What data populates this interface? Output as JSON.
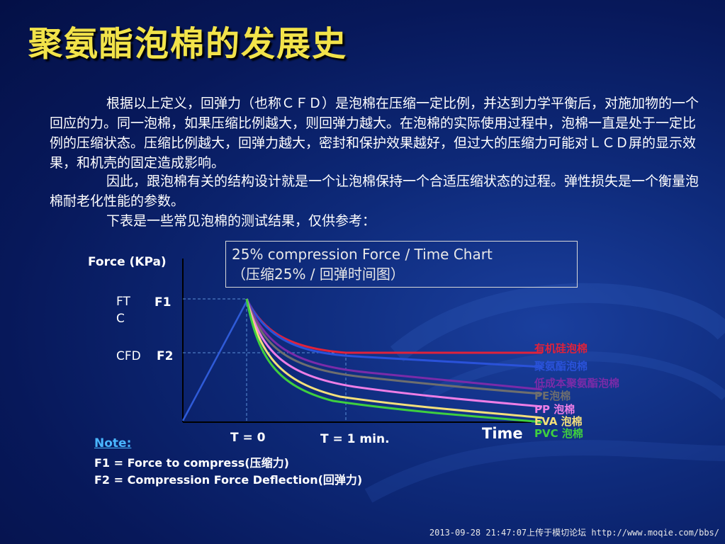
{
  "slide": {
    "title": "聚氨酯泡棉的发展史",
    "paragraphs": [
      "根据以上定义，回弹力（也称ＣＦＤ）是泡棉在压缩一定比例，并达到力学平衡后，对施加物的一个回应的力。同一泡棉，如果压缩比例越大，则回弹力越大。在泡棉的实际使用过程中，泡棉一直是处于一定比例的压缩状态。压缩比例越大，回弹力越大，密封和保护效果越好，但过大的压缩力可能对ＬＣＤ屏的显示效果，和机壳的固定造成影响。",
      "因此，跟泡棉有关的结构设计就是一个让泡棉保持一个合适压缩状态的过程。弹性损失是一个衡量泡棉耐老化性能的参数。",
      "下表是一些常见泡棉的测试结果，仅供参考："
    ],
    "watermark": "2013-09-28 21:47:07上传于模切论坛 http://www.moqie.com/bbs/"
  },
  "chart_data": {
    "type": "line",
    "title": "25% compression Force / Time Chart",
    "subtitle": "（压缩25% / 回弹时间图）",
    "ylabel": "Force (KPa)",
    "xlabel": "Time",
    "y_markers": {
      "ftc": "FT\nC",
      "f1": "F1",
      "cfd": "CFD",
      "f2": "F2"
    },
    "x_markers": {
      "t0": "T = 0",
      "t1": "T = 1 min."
    },
    "series": [
      {
        "name": "有机硅泡棉",
        "color": "#e0223a"
      },
      {
        "name": "聚氨酯泡棉",
        "color": "#2a52d9"
      },
      {
        "name": "低成本聚氨酯泡棉",
        "color": "#7a2ba8"
      },
      {
        "name": "PE泡棉",
        "color": "#6e6e6e"
      },
      {
        "name": "PP 泡棉",
        "color": "#ee7ee6"
      },
      {
        "name": "EVA 泡棉",
        "color": "#f4e07a"
      },
      {
        "name": "PVC 泡棉",
        "color": "#3fcf3f"
      }
    ],
    "loading_line_color": "#2f5bd8",
    "note": {
      "title": "Note:",
      "lines": [
        "F1 = Force to compress(压缩力)",
        "F2 = Compression Force Deflection(回弹力)"
      ]
    }
  }
}
